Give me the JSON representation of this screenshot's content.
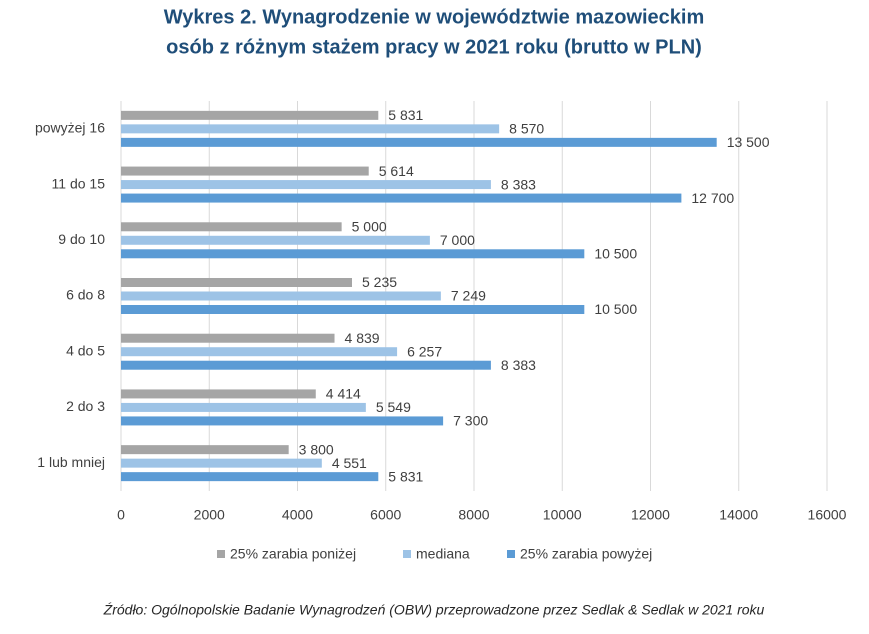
{
  "chart_data": {
    "type": "hbar",
    "title": [
      "Wykres 2. Wynagrodzenie w województwie mazowieckim",
      "osób z różnym stażem pracy w 2021 roku (brutto w PLN)"
    ],
    "categories": [
      "powyżej 16",
      "11 do 15",
      "9 do 10",
      "6 do 8",
      "4 do 5",
      "2 do 3",
      "1 lub mniej"
    ],
    "series": [
      {
        "name": "25% zarabia poniżej",
        "color": "#a5a5a5",
        "values": [
          5831,
          5614,
          5000,
          5235,
          4839,
          4414,
          3800
        ],
        "value_labels": [
          "5 831",
          "5 614",
          "5 000",
          "5 235",
          "4 839",
          "4 414",
          "3 800"
        ]
      },
      {
        "name": "mediana",
        "color": "#9dc3e6",
        "values": [
          8570,
          8383,
          7000,
          7249,
          6257,
          5549,
          4551
        ],
        "value_labels": [
          "8 570",
          "8 383",
          "7 000",
          "7 249",
          "6 257",
          "5 549",
          "4 551"
        ]
      },
      {
        "name": "25% zarabia powyżej",
        "color": "#5b9bd5",
        "values": [
          13500,
          12700,
          10500,
          10500,
          8383,
          7300,
          5831
        ],
        "value_labels": [
          "13 500",
          "12 700",
          "10 500",
          "10 500",
          "8 383",
          "7 300",
          "5 831"
        ]
      }
    ],
    "xlim": [
      0,
      16000
    ],
    "xticks": [
      0,
      2000,
      4000,
      6000,
      8000,
      10000,
      12000,
      14000,
      16000
    ],
    "grid": true,
    "source": "Źródło: Ogólnopolskie Badanie Wynagrodzeń (OBW) przeprowadzone przez Sedlak & Sedlak w 2021 roku"
  }
}
